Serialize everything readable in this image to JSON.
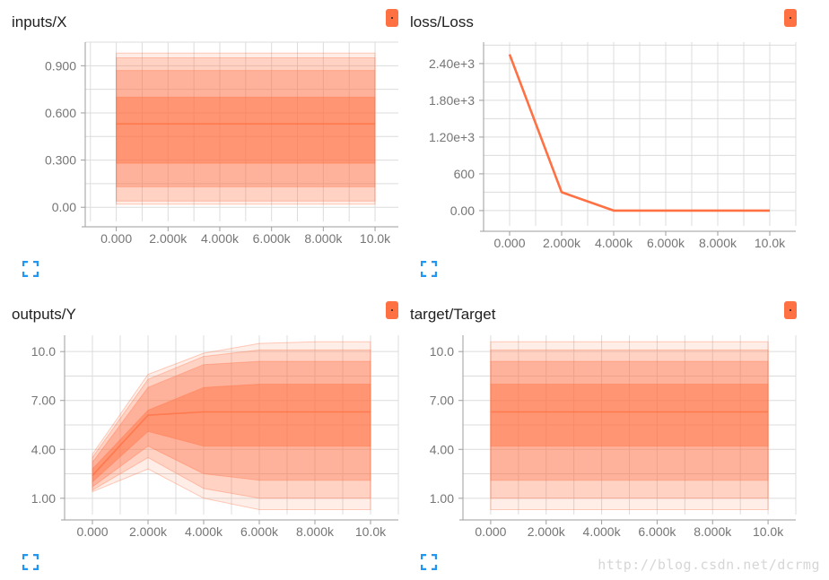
{
  "accent_color": "#ff7043",
  "icon_color": "#2196f3",
  "watermark": "http://blog.csdn.net/dcrmg",
  "chart_data": [
    {
      "id": "inputs",
      "type": "area",
      "title": "inputs/X",
      "x": [
        0,
        10000
      ],
      "x_ticks": [
        "0.000",
        "2.000k",
        "4.000k",
        "6.000k",
        "8.000k",
        "10.0k"
      ],
      "y_ticks": [
        {
          "v": 0,
          "label": "0.00"
        },
        {
          "v": 0.3,
          "label": "0.300"
        },
        {
          "v": 0.6,
          "label": "0.600"
        },
        {
          "v": 0.9,
          "label": "0.900"
        }
      ],
      "ylim": [
        -0.09,
        1.05
      ],
      "bands": [
        {
          "lo": [
            0.02,
            0.02
          ],
          "hi": [
            0.98,
            0.98
          ]
        },
        {
          "lo": [
            0.04,
            0.04
          ],
          "hi": [
            0.95,
            0.95
          ]
        },
        {
          "lo": [
            0.13,
            0.13
          ],
          "hi": [
            0.87,
            0.87
          ]
        },
        {
          "lo": [
            0.28,
            0.28
          ],
          "hi": [
            0.7,
            0.7
          ]
        }
      ],
      "median": [
        0.53,
        0.53
      ]
    },
    {
      "id": "loss",
      "type": "line",
      "title": "loss/Loss",
      "x": [
        0,
        2000,
        4000,
        6000,
        8000,
        10000
      ],
      "values": [
        2550,
        300,
        0,
        0,
        0,
        0
      ],
      "x_ticks": [
        "0.000",
        "2.000k",
        "4.000k",
        "6.000k",
        "8.000k",
        "10.0k"
      ],
      "y_ticks": [
        {
          "v": 0,
          "label": "0.00"
        },
        {
          "v": 600,
          "label": "600"
        },
        {
          "v": 1200,
          "label": "1.20e+3"
        },
        {
          "v": 1800,
          "label": "1.80e+3"
        },
        {
          "v": 2400,
          "label": "2.40e+3"
        }
      ],
      "ylim": [
        -250,
        2750
      ]
    },
    {
      "id": "outputs",
      "type": "area",
      "title": "outputs/Y",
      "x": [
        0,
        2000,
        4000,
        6000,
        8000,
        10000
      ],
      "x_ticks": [
        "0.000",
        "2.000k",
        "4.000k",
        "6.000k",
        "8.000k",
        "10.0k"
      ],
      "y_ticks": [
        {
          "v": 1,
          "label": "1.00"
        },
        {
          "v": 4,
          "label": "4.00"
        },
        {
          "v": 7,
          "label": "7.00"
        },
        {
          "v": 10,
          "label": "10.0"
        }
      ],
      "ylim": [
        0,
        11
      ],
      "bands": [
        {
          "lo": [
            1.4,
            2.8,
            1.0,
            0.3,
            0.3,
            0.3
          ],
          "hi": [
            3.7,
            8.6,
            9.9,
            10.5,
            10.6,
            10.6
          ]
        },
        {
          "lo": [
            1.5,
            3.5,
            1.6,
            1.0,
            1.0,
            1.0
          ],
          "hi": [
            3.5,
            8.3,
            9.7,
            10.1,
            10.1,
            10.1
          ]
        },
        {
          "lo": [
            1.7,
            4.2,
            2.5,
            2.1,
            2.1,
            2.1
          ],
          "hi": [
            3.2,
            7.8,
            9.2,
            9.4,
            9.4,
            9.4
          ]
        },
        {
          "lo": [
            2.0,
            5.1,
            4.2,
            4.2,
            4.2,
            4.2
          ],
          "hi": [
            2.8,
            6.4,
            7.8,
            8.0,
            8.0,
            8.0
          ]
        }
      ],
      "median": [
        2.4,
        6.1,
        6.3,
        6.3,
        6.3,
        6.3
      ]
    },
    {
      "id": "target",
      "type": "area",
      "title": "target/Target",
      "x": [
        0,
        10000
      ],
      "x_ticks": [
        "0.000",
        "2.000k",
        "4.000k",
        "6.000k",
        "8.000k",
        "10.0k"
      ],
      "y_ticks": [
        {
          "v": 1,
          "label": "1.00"
        },
        {
          "v": 4,
          "label": "4.00"
        },
        {
          "v": 7,
          "label": "7.00"
        },
        {
          "v": 10,
          "label": "10.0"
        }
      ],
      "ylim": [
        0,
        11
      ],
      "bands": [
        {
          "lo": [
            0.3,
            0.3
          ],
          "hi": [
            10.6,
            10.6
          ]
        },
        {
          "lo": [
            1.0,
            1.0
          ],
          "hi": [
            10.1,
            10.1
          ]
        },
        {
          "lo": [
            2.1,
            2.1
          ],
          "hi": [
            9.4,
            9.4
          ]
        },
        {
          "lo": [
            4.2,
            4.2
          ],
          "hi": [
            8.0,
            8.0
          ]
        }
      ],
      "median": [
        6.3,
        6.3
      ]
    }
  ]
}
